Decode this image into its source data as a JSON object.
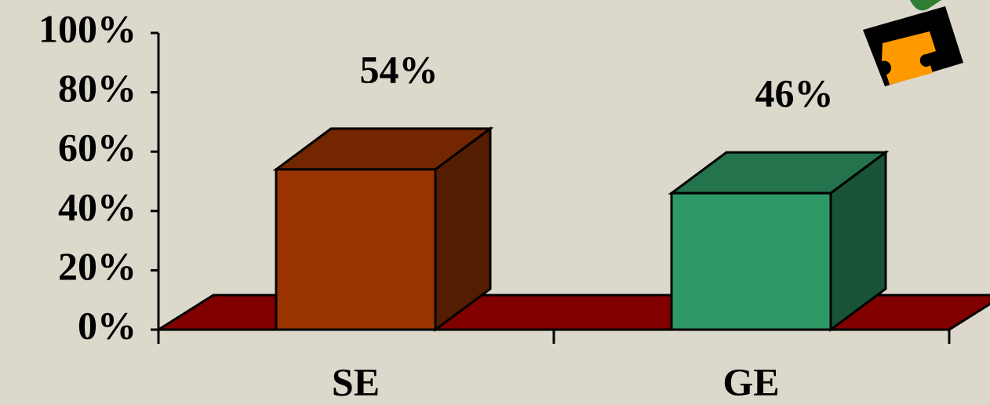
{
  "chart_data": {
    "type": "bar3d",
    "categories": [
      "SE",
      "GE"
    ],
    "values": [
      54,
      46
    ],
    "value_labels": [
      "54%",
      "46%"
    ],
    "colors": [
      "#993300",
      "#2e9966"
    ],
    "floor_color": "#800000",
    "ylim": [
      0,
      100
    ],
    "yticks": [
      {
        "value": 0,
        "label": "0%"
      },
      {
        "value": 20,
        "label": "20%"
      },
      {
        "value": 40,
        "label": "40%"
      },
      {
        "value": 60,
        "label": "60%"
      },
      {
        "value": 80,
        "label": "80%"
      },
      {
        "value": 100,
        "label": "100%"
      }
    ]
  }
}
